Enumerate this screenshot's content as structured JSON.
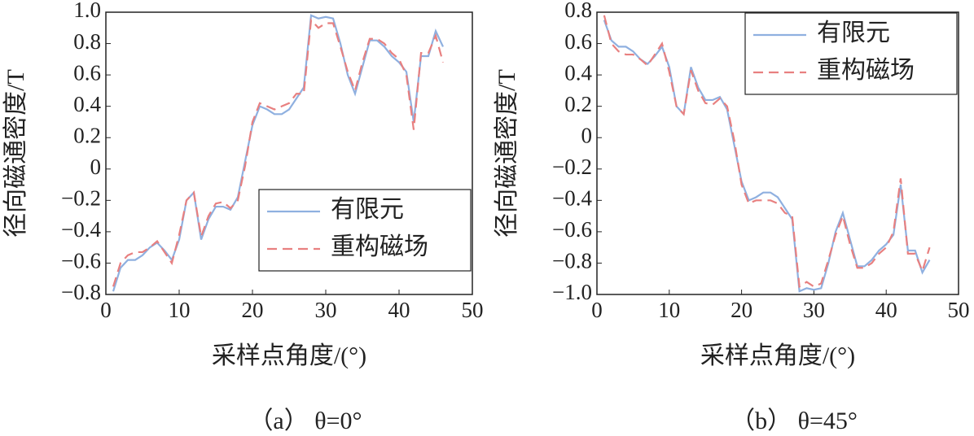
{
  "chart_data": [
    {
      "type": "line",
      "x_label": "采样点角度/(°)",
      "y_label": "径向磁通密度/T",
      "caption": "（a） θ=0°",
      "x": [
        1,
        2,
        3,
        4,
        5,
        6,
        7,
        8,
        9,
        10,
        11,
        12,
        13,
        14,
        15,
        16,
        17,
        18,
        19,
        20,
        21,
        22,
        23,
        24,
        25,
        26,
        27,
        28,
        29,
        30,
        31,
        32,
        33,
        34,
        35,
        36,
        37,
        38,
        39,
        40,
        41,
        42,
        43,
        44,
        45,
        46
      ],
      "series": [
        {
          "name": "有限元",
          "color": "#8fb0e0",
          "dashed": false,
          "values": [
            -0.78,
            -0.63,
            -0.58,
            -0.58,
            -0.55,
            -0.5,
            -0.47,
            -0.52,
            -0.58,
            -0.45,
            -0.2,
            -0.15,
            -0.45,
            -0.32,
            -0.24,
            -0.24,
            -0.26,
            -0.18,
            0.05,
            0.28,
            0.4,
            0.38,
            0.35,
            0.35,
            0.38,
            0.45,
            0.52,
            0.98,
            0.96,
            0.97,
            0.96,
            0.8,
            0.6,
            0.48,
            0.65,
            0.82,
            0.82,
            0.78,
            0.72,
            0.68,
            0.62,
            0.3,
            0.72,
            0.72,
            0.88,
            0.78
          ]
        },
        {
          "name": "重构磁场",
          "color": "#e88080",
          "dashed": true,
          "values": [
            -0.75,
            -0.6,
            -0.55,
            -0.53,
            -0.53,
            -0.5,
            -0.46,
            -0.53,
            -0.6,
            -0.42,
            -0.2,
            -0.15,
            -0.43,
            -0.3,
            -0.22,
            -0.21,
            -0.25,
            -0.2,
            0.02,
            0.3,
            0.42,
            0.4,
            0.38,
            0.4,
            0.42,
            0.48,
            0.48,
            0.95,
            0.9,
            0.93,
            0.93,
            0.78,
            0.62,
            0.5,
            0.68,
            0.83,
            0.83,
            0.8,
            0.74,
            0.7,
            0.6,
            0.25,
            0.74,
            0.74,
            0.85,
            0.68
          ]
        }
      ],
      "xlim": [
        0,
        50
      ],
      "xticks": [
        0,
        10,
        20,
        30,
        40,
        50
      ],
      "ylim": [
        -0.8,
        1
      ],
      "yticks": [
        {
          "value": -0.8,
          "label": "−0.8"
        },
        {
          "value": -0.6,
          "label": "−0.6"
        },
        {
          "value": -0.4,
          "label": "−0.4"
        },
        {
          "value": -0.2,
          "label": "−0.2"
        },
        0,
        0.2,
        0.4,
        0.6,
        0.8,
        {
          "value": 1,
          "label": "1.0"
        }
      ],
      "legend": "lower right"
    },
    {
      "type": "line",
      "x_label": "采样点角度/(°)",
      "y_label": "径向磁通密度/T",
      "caption": "（b） θ=45°",
      "x": [
        1,
        2,
        3,
        4,
        5,
        6,
        7,
        8,
        9,
        10,
        11,
        12,
        13,
        14,
        15,
        16,
        17,
        18,
        19,
        20,
        21,
        22,
        23,
        24,
        25,
        26,
        27,
        28,
        29,
        30,
        31,
        32,
        33,
        34,
        35,
        36,
        37,
        38,
        39,
        40,
        41,
        42,
        43,
        44,
        45,
        46
      ],
      "series": [
        {
          "name": "有限元",
          "color": "#8fb0e0",
          "dashed": false,
          "values": [
            0.75,
            0.62,
            0.58,
            0.58,
            0.55,
            0.5,
            0.47,
            0.52,
            0.58,
            0.45,
            0.2,
            0.15,
            0.45,
            0.32,
            0.24,
            0.24,
            0.26,
            0.18,
            -0.05,
            -0.28,
            -0.4,
            -0.38,
            -0.35,
            -0.35,
            -0.38,
            -0.45,
            -0.52,
            -0.98,
            -0.96,
            -0.97,
            -0.96,
            -0.8,
            -0.6,
            -0.48,
            -0.65,
            -0.82,
            -0.82,
            -0.78,
            -0.72,
            -0.68,
            -0.62,
            -0.3,
            -0.72,
            -0.72,
            -0.86,
            -0.78
          ]
        },
        {
          "name": "重构磁场",
          "color": "#e88080",
          "dashed": true,
          "values": [
            0.78,
            0.6,
            0.55,
            0.53,
            0.53,
            0.5,
            0.46,
            0.53,
            0.6,
            0.42,
            0.2,
            0.15,
            0.43,
            0.3,
            0.22,
            0.21,
            0.25,
            0.2,
            -0.02,
            -0.3,
            -0.42,
            -0.4,
            -0.4,
            -0.4,
            -0.42,
            -0.48,
            -0.5,
            -0.95,
            -0.92,
            -0.95,
            -0.93,
            -0.78,
            -0.62,
            -0.5,
            -0.68,
            -0.83,
            -0.83,
            -0.8,
            -0.74,
            -0.7,
            -0.6,
            -0.26,
            -0.74,
            -0.74,
            -0.85,
            -0.7
          ]
        }
      ],
      "xlim": [
        0,
        50
      ],
      "xticks": [
        0,
        10,
        20,
        30,
        40,
        50
      ],
      "ylim": [
        -1,
        0.8
      ],
      "yticks": [
        {
          "value": -1,
          "label": "−1.0"
        },
        {
          "value": -0.8,
          "label": "−0.8"
        },
        {
          "value": -0.6,
          "label": "−0.6"
        },
        {
          "value": -0.4,
          "label": "−0.4"
        },
        {
          "value": -0.2,
          "label": "−0.2"
        },
        0,
        0.2,
        0.4,
        0.6,
        0.8
      ],
      "legend": "upper right"
    }
  ]
}
